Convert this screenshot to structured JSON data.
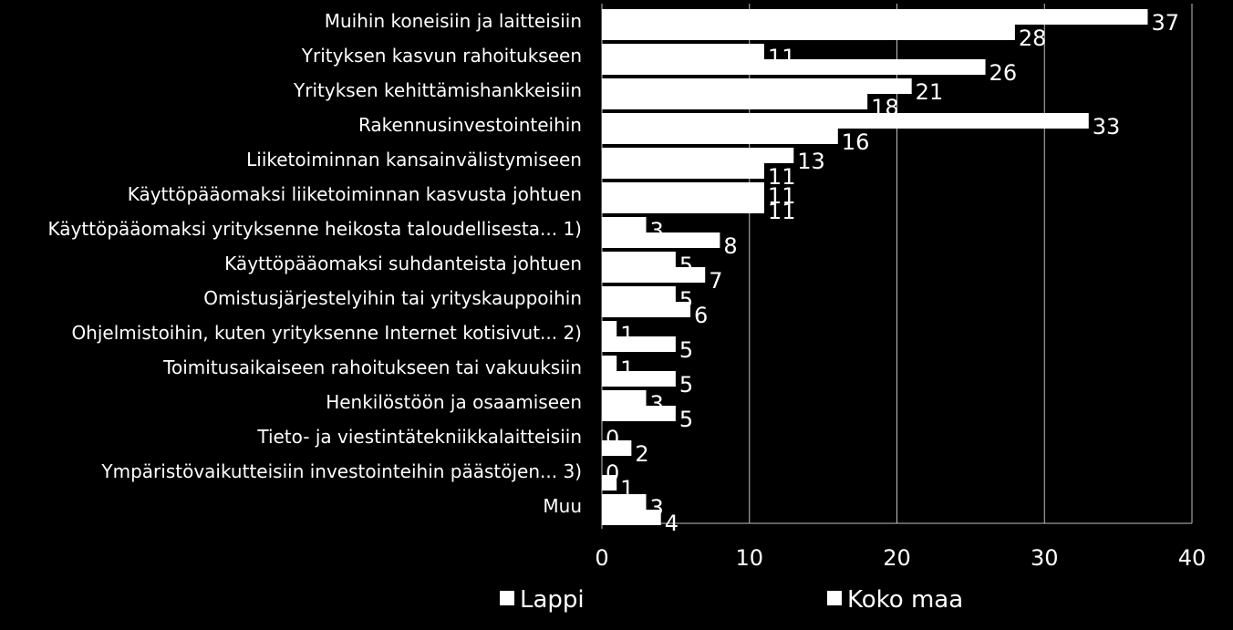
{
  "chart_data": {
    "type": "bar",
    "orientation": "horizontal",
    "categories": [
      "Muihin koneisiin ja laitteisiin",
      "Yrityksen kasvun rahoitukseen",
      "Yrityksen kehittämishankkeisiin",
      "Rakennusinvestointeihin",
      "Liiketoiminnan kansainvälistymiseen",
      "Käyttöpääomaksi liiketoiminnan kasvusta johtuen",
      "Käyttöpääomaksi yrityksenne heikosta taloudellisesta... 1)",
      "Käyttöpääomaksi suhdanteista johtuen",
      "Omistusjärjestelyihin tai yrityskauppoihin",
      "Ohjelmistoihin, kuten yrityksenne Internet kotisivut... 2)",
      "Toimitusaikaiseen rahoitukseen tai vakuuksiin",
      "Henkilöstöön ja osaamiseen",
      "Tieto- ja viestintätekniikkalaitteisiin",
      "Ympäristövaikutteisiin investointeihin päästöjen... 3)",
      "Muu"
    ],
    "series": [
      {
        "name": "Lappi",
        "values": [
          37,
          11,
          21,
          33,
          13,
          11,
          3,
          5,
          5,
          1,
          1,
          3,
          0,
          0,
          3
        ]
      },
      {
        "name": "Koko maa",
        "values": [
          28,
          26,
          18,
          16,
          11,
          11,
          8,
          7,
          6,
          5,
          5,
          5,
          2,
          1,
          4
        ]
      }
    ],
    "xlim": [
      0,
      40
    ],
    "xticks": [
      "0",
      "10",
      "20",
      "30",
      "40"
    ],
    "grid": true,
    "legend_position": "bottom",
    "bar_color": "#ffffff",
    "background": "#000000",
    "gridline_color": "#bfbfbf"
  }
}
